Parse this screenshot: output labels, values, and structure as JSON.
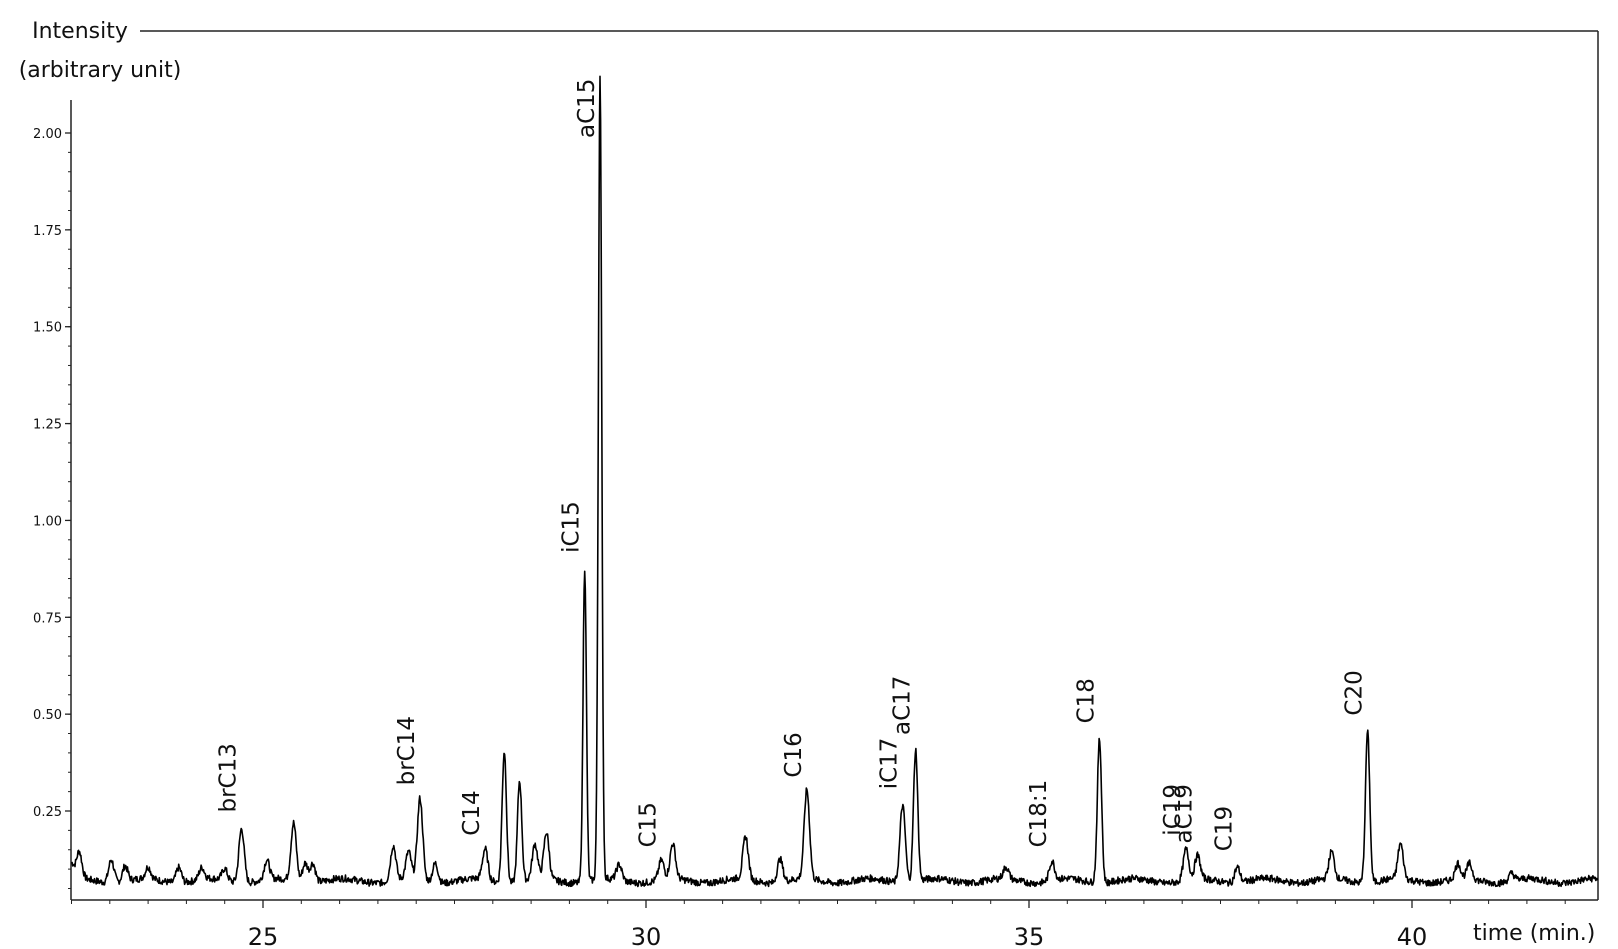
{
  "chart_data": {
    "type": "line",
    "title": "",
    "ylabel": [
      "Intensity",
      "(arbitrary unit)"
    ],
    "xlabel": "time (min.)",
    "xlim": [
      22.5,
      42.5
    ],
    "ylim": [
      0.03,
      2.1
    ],
    "x_ticks": [
      25,
      30,
      35,
      40
    ],
    "y_ticks": [
      "2.00",
      "1.75",
      "1.50",
      "1.25",
      "1.00",
      "0.75",
      "0.50",
      "0.25"
    ],
    "y_tick_values": [
      2.0,
      1.75,
      1.5,
      1.25,
      1.0,
      0.75,
      0.5,
      0.25
    ],
    "grid": false,
    "baseline": 0.07,
    "peaks": [
      {
        "label": "",
        "x": 22.6,
        "y": 0.14
      },
      {
        "label": "",
        "x": 23.02,
        "y": 0.13
      },
      {
        "label": "",
        "x": 23.2,
        "y": 0.11
      },
      {
        "label": "",
        "x": 23.5,
        "y": 0.1
      },
      {
        "label": "",
        "x": 23.9,
        "y": 0.11
      },
      {
        "label": "",
        "x": 24.2,
        "y": 0.1
      },
      {
        "label": "",
        "x": 24.5,
        "y": 0.1
      },
      {
        "label": "brC13",
        "x": 24.72,
        "y": 0.21
      },
      {
        "label": "",
        "x": 25.05,
        "y": 0.12
      },
      {
        "label": "",
        "x": 25.4,
        "y": 0.22
      },
      {
        "label": "",
        "x": 25.55,
        "y": 0.12
      },
      {
        "label": "",
        "x": 25.65,
        "y": 0.12
      },
      {
        "label": "",
        "x": 26.7,
        "y": 0.16
      },
      {
        "label": "",
        "x": 26.9,
        "y": 0.14
      },
      {
        "label": "brC14",
        "x": 27.05,
        "y": 0.28
      },
      {
        "label": "",
        "x": 27.25,
        "y": 0.12
      },
      {
        "label": "C14",
        "x": 27.9,
        "y": 0.15
      },
      {
        "label": "",
        "x": 28.15,
        "y": 0.41
      },
      {
        "label": "",
        "x": 28.35,
        "y": 0.33
      },
      {
        "label": "",
        "x": 28.55,
        "y": 0.16
      },
      {
        "label": "",
        "x": 28.7,
        "y": 0.19
      },
      {
        "label": "iC15",
        "x": 29.2,
        "y": 0.88
      },
      {
        "label": "aC15",
        "x": 29.4,
        "y": 2.15
      },
      {
        "label": "",
        "x": 29.65,
        "y": 0.11
      },
      {
        "label": "C15",
        "x": 30.2,
        "y": 0.12
      },
      {
        "label": "",
        "x": 30.35,
        "y": 0.16
      },
      {
        "label": "",
        "x": 31.3,
        "y": 0.18
      },
      {
        "label": "",
        "x": 31.75,
        "y": 0.13
      },
      {
        "label": "C16",
        "x": 32.1,
        "y": 0.3
      },
      {
        "label": "iC17",
        "x": 33.35,
        "y": 0.27
      },
      {
        "label": "aC17",
        "x": 33.52,
        "y": 0.41
      },
      {
        "label": "",
        "x": 34.7,
        "y": 0.1
      },
      {
        "label": "C18:1",
        "x": 35.3,
        "y": 0.12
      },
      {
        "label": "C18",
        "x": 35.92,
        "y": 0.44
      },
      {
        "label": "iC19",
        "x": 37.05,
        "y": 0.15
      },
      {
        "label": "aC19",
        "x": 37.2,
        "y": 0.13
      },
      {
        "label": "C19",
        "x": 37.72,
        "y": 0.11
      },
      {
        "label": "",
        "x": 38.95,
        "y": 0.14
      },
      {
        "label": "C20",
        "x": 39.42,
        "y": 0.46
      },
      {
        "label": "",
        "x": 39.85,
        "y": 0.16
      },
      {
        "label": "",
        "x": 40.6,
        "y": 0.11
      },
      {
        "label": "",
        "x": 40.75,
        "y": 0.11
      },
      {
        "label": "",
        "x": 41.3,
        "y": 0.09
      }
    ],
    "colors": {
      "line": "#000000",
      "axis": "#222222"
    }
  }
}
